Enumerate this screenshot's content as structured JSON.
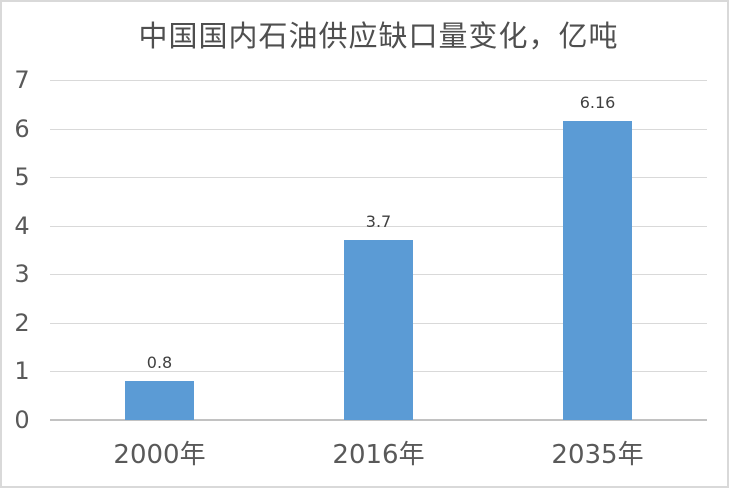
{
  "page": {
    "background_color": "#ffffff",
    "border_color": "#d9d9d9"
  },
  "chart_data": {
    "type": "bar",
    "title": "中国国内石油供应缺口量变化，亿吨",
    "categories": [
      "2000年",
      "2016年",
      "2035年"
    ],
    "values": [
      0.8,
      3.7,
      6.16
    ],
    "data_labels": [
      "0.8",
      "3.7",
      "6.16"
    ],
    "xlabel": "",
    "ylabel": "",
    "ylim": [
      0,
      7
    ],
    "ytick_step": 1,
    "yticks": [
      "0",
      "1",
      "2",
      "3",
      "4",
      "5",
      "6",
      "7"
    ],
    "grid": true,
    "legend_position": "none",
    "bar_color": "#5B9BD5",
    "gridline_color": "#d9d9d9",
    "axis_line_color": "#c2c2c2",
    "tick_label_color": "#595959",
    "title_color": "#4f4f4f",
    "value_label_color": "#404040"
  }
}
